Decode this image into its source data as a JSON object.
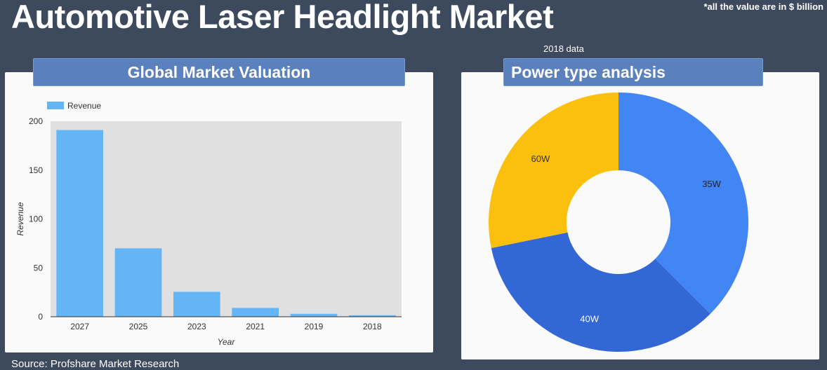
{
  "title": "Automotive Laser Headlight Market",
  "note": "*all the value are in $ billion",
  "subnote": "2018 data",
  "source": "Source: Profshare Market Research",
  "bar_panel": {
    "header": "Global Market Valuation"
  },
  "pie_panel": {
    "header": "Power type analysis"
  },
  "colors": {
    "bar": "#64b5f6",
    "plot_bg": "#e0e0e0",
    "header": "#5a80bd",
    "slice_35w": "#4285f4",
    "slice_40w": "#3367d6",
    "slice_60w": "#fbc00e"
  },
  "chart_data": [
    {
      "type": "bar",
      "categories": [
        "2027",
        "2025",
        "2023",
        "2021",
        "2019",
        "2018"
      ],
      "series": [
        {
          "name": "Revenue",
          "values": [
            191,
            70,
            25.5,
            9,
            3,
            1.5
          ]
        }
      ],
      "xlabel": "Year",
      "ylabel": "Revenue",
      "ylim": [
        0,
        200
      ],
      "yticks": [
        "0",
        "50",
        "100",
        "150",
        "200"
      ],
      "legend": "top-left",
      "grid": false
    },
    {
      "type": "pie",
      "donut": true,
      "labels": [
        "35W",
        "40W",
        "60W"
      ],
      "values": [
        37.5,
        34.3,
        28.2
      ],
      "legend": "none"
    }
  ]
}
